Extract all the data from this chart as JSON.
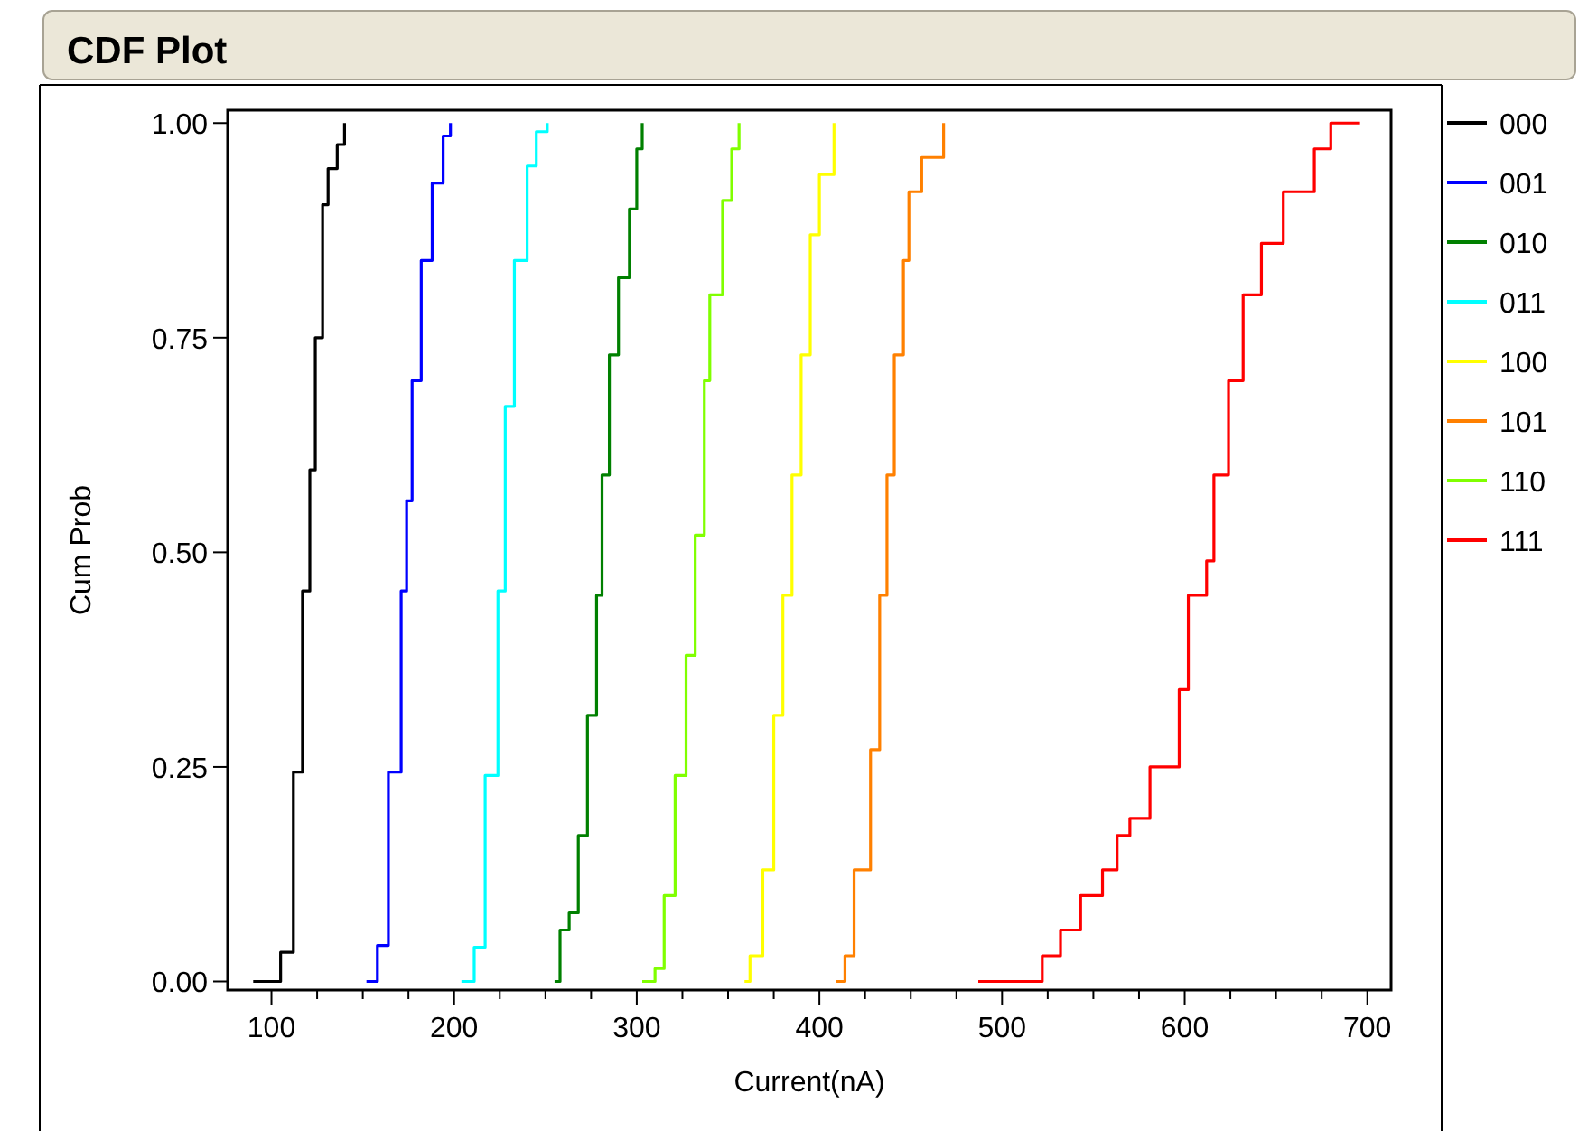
{
  "chart_data": {
    "type": "step",
    "title": "CDF Plot",
    "xlabel": "Current(nA)",
    "ylabel": "Cum Prob",
    "xlim": [
      76,
      713
    ],
    "ylim": [
      -0.01,
      1.015
    ],
    "xticks": [
      100,
      {
        "value": 125,
        "label": null
      },
      {
        "value": 150,
        "label": null
      },
      {
        "value": 175,
        "label": null
      },
      200,
      {
        "value": 225,
        "label": null
      },
      {
        "value": 250,
        "label": null
      },
      {
        "value": 275,
        "label": null
      },
      300,
      {
        "value": 325,
        "label": null
      },
      {
        "value": 350,
        "label": null
      },
      {
        "value": 375,
        "label": null
      },
      400,
      {
        "value": 425,
        "label": null
      },
      {
        "value": 450,
        "label": null
      },
      {
        "value": 475,
        "label": null
      },
      500,
      {
        "value": 525,
        "label": null
      },
      {
        "value": 550,
        "label": null
      },
      {
        "value": 575,
        "label": null
      },
      600,
      {
        "value": 625,
        "label": null
      },
      {
        "value": 650,
        "label": null
      },
      {
        "value": 675,
        "label": null
      },
      700
    ],
    "yticks": [
      {
        "value": 0,
        "label": "0.00"
      },
      {
        "value": 0.25,
        "label": "0.25"
      },
      {
        "value": 0.5,
        "label": "0.50"
      },
      {
        "value": 0.75,
        "label": "0.75"
      },
      {
        "value": 1,
        "label": "1.00"
      }
    ],
    "grid": false,
    "legend": "right",
    "marker": "none",
    "line_style": "solid",
    "series": [
      {
        "name": "000",
        "color": "#000000",
        "x": [
          90,
          105,
          112,
          117,
          121,
          124,
          128,
          131,
          136,
          140
        ],
        "values": [
          0,
          0.034,
          0.244,
          0.455,
          0.596,
          0.75,
          0.905,
          0.947,
          0.975,
          1
        ]
      },
      {
        "name": "001",
        "color": "#0000ff",
        "x": [
          152,
          158,
          164,
          171,
          174,
          177,
          182,
          188,
          194,
          198
        ],
        "values": [
          0,
          0.042,
          0.244,
          0.455,
          0.56,
          0.7,
          0.84,
          0.93,
          0.985,
          1
        ]
      },
      {
        "name": "010",
        "color": "#008000",
        "x": [
          255,
          258,
          263,
          268,
          273,
          278,
          281,
          285,
          290,
          296,
          300,
          303
        ],
        "values": [
          0,
          0.06,
          0.08,
          0.17,
          0.31,
          0.45,
          0.59,
          0.73,
          0.82,
          0.9,
          0.97,
          1
        ]
      },
      {
        "name": "011",
        "color": "#00ffff",
        "x": [
          204,
          211,
          217,
          224,
          228,
          233,
          240,
          245,
          251
        ],
        "values": [
          0,
          0.04,
          0.24,
          0.455,
          0.67,
          0.84,
          0.95,
          0.99,
          1
        ]
      },
      {
        "name": "100",
        "color": "#ffff00",
        "x": [
          359,
          362,
          369,
          375,
          380,
          385,
          390,
          395,
          400,
          408
        ],
        "values": [
          0,
          0.03,
          0.13,
          0.31,
          0.45,
          0.59,
          0.73,
          0.87,
          0.94,
          1
        ]
      },
      {
        "name": "101",
        "color": "#ff8000",
        "x": [
          409,
          414,
          419,
          428,
          433,
          437,
          441,
          446,
          449,
          456,
          468
        ],
        "values": [
          0,
          0.03,
          0.13,
          0.27,
          0.45,
          0.59,
          0.73,
          0.84,
          0.92,
          0.96,
          1
        ]
      },
      {
        "name": "110",
        "color": "#80ff00",
        "x": [
          303,
          310,
          315,
          321,
          327,
          332,
          337,
          340,
          347,
          352,
          356
        ],
        "values": [
          0,
          0.015,
          0.1,
          0.24,
          0.38,
          0.52,
          0.7,
          0.8,
          0.91,
          0.97,
          1
        ]
      },
      {
        "name": "111",
        "color": "#ff0000",
        "x": [
          487,
          522,
          532,
          543,
          555,
          563,
          570,
          581,
          597,
          602,
          612,
          616,
          624,
          632,
          642,
          654,
          671,
          680,
          696
        ],
        "values": [
          0,
          0.03,
          0.06,
          0.1,
          0.13,
          0.17,
          0.19,
          0.25,
          0.34,
          0.45,
          0.49,
          0.59,
          0.7,
          0.8,
          0.86,
          0.92,
          0.97,
          1,
          1
        ]
      }
    ]
  }
}
